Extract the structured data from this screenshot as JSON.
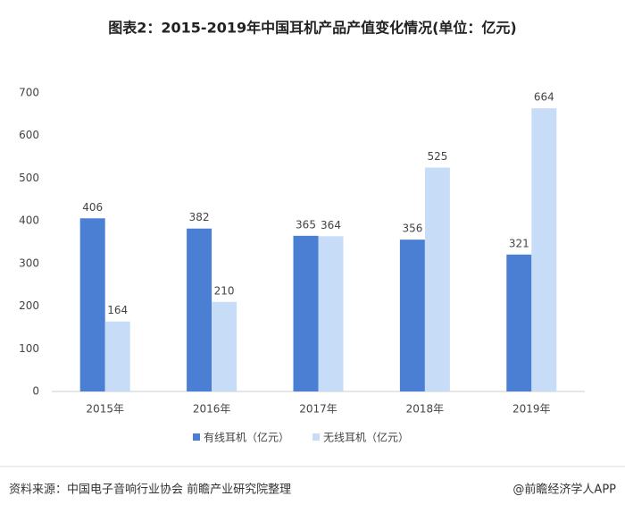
{
  "chart_data": {
    "type": "bar",
    "title": "图表2：2015-2019年中国耳机产品产值变化情况(单位：亿元)",
    "categories": [
      "2015年",
      "2016年",
      "2017年",
      "2018年",
      "2019年"
    ],
    "series": [
      {
        "name": "有线耳机（亿元）",
        "color": "#4a7fd4",
        "values": [
          406,
          382,
          365,
          356,
          321
        ]
      },
      {
        "name": "无线耳机（亿元）",
        "color": "#c6dcf7",
        "values": [
          164,
          210,
          364,
          525,
          664
        ]
      }
    ],
    "ylim": [
      0,
      700
    ],
    "yticks": [
      0,
      100,
      200,
      300,
      400,
      500,
      600,
      700
    ],
    "grid": false,
    "legend": "bottom",
    "source": "资料来源：中国电子音响行业协会 前瞻产业研究院整理",
    "credit": "@前瞻经济学人APP"
  }
}
